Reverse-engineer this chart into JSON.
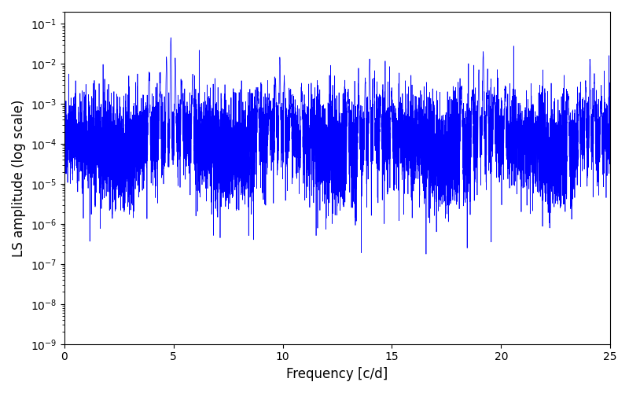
{
  "title": "",
  "xlabel": "Frequency [c/d]",
  "ylabel": "LS amplitude (log scale)",
  "xlim": [
    0,
    25
  ],
  "ylim": [
    1e-09,
    0.2
  ],
  "line_color": "#0000ff",
  "line_width": 0.5,
  "background_color": "#ffffff",
  "figsize": [
    8.0,
    5.0
  ],
  "dpi": 100,
  "peak_freqs": [
    4.88,
    9.87,
    13.98,
    19.18,
    24.07
  ],
  "peak_amps": [
    0.045,
    0.014,
    0.013,
    0.02,
    0.012
  ],
  "base_log_mean": -4.0,
  "base_log_std_up": 0.6,
  "base_log_std_down": 2.5,
  "num_points": 8000,
  "seed": 77
}
